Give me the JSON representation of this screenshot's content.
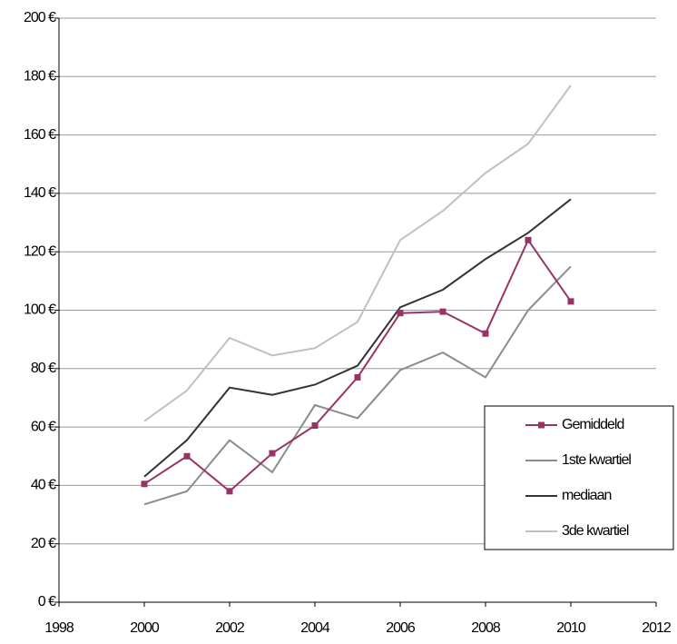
{
  "chart_data": {
    "type": "line",
    "x": [
      2000,
      2001,
      2002,
      2003,
      2004,
      2005,
      2006,
      2007,
      2008,
      2009,
      2010
    ],
    "series": [
      {
        "name": "Gemiddeld",
        "color": "#993366",
        "marker": "square",
        "values": [
          40.5,
          50,
          38,
          51,
          60.5,
          77,
          99,
          99.5,
          92,
          124,
          103
        ]
      },
      {
        "name": "1ste kwartiel",
        "color": "#8c8c8c",
        "values": [
          33.5,
          38,
          55.5,
          44.5,
          67.5,
          63,
          79.5,
          85.5,
          77,
          100,
          115
        ]
      },
      {
        "name": "mediaan",
        "color": "#333333",
        "values": [
          43,
          55.5,
          73.5,
          71,
          74.5,
          81,
          101,
          107,
          117.5,
          126.5,
          138
        ]
      },
      {
        "name": "3de kwartiel",
        "color": "#c0c0c0",
        "values": [
          62,
          72.5,
          90.5,
          84.5,
          87,
          96,
          124,
          134,
          147,
          157,
          177
        ]
      }
    ],
    "xlim": [
      1998,
      2012
    ],
    "xticks": [
      1998,
      2000,
      2002,
      2004,
      2006,
      2008,
      2010,
      2012
    ],
    "ylim": [
      0,
      200
    ],
    "yticks": [
      {
        "value": 0,
        "label": "0 €"
      },
      {
        "value": 20,
        "label": "20 €"
      },
      {
        "value": 40,
        "label": "40 €"
      },
      {
        "value": 60,
        "label": "60 €"
      },
      {
        "value": 80,
        "label": "80 €"
      },
      {
        "value": 100,
        "label": "100 €"
      },
      {
        "value": 120,
        "label": "120 €"
      },
      {
        "value": 140,
        "label": "140 €"
      },
      {
        "value": 160,
        "label": "160 €"
      },
      {
        "value": 180,
        "label": "180 €"
      },
      {
        "value": 200,
        "label": "200 €"
      }
    ],
    "grid": true,
    "legend": "lower right"
  }
}
